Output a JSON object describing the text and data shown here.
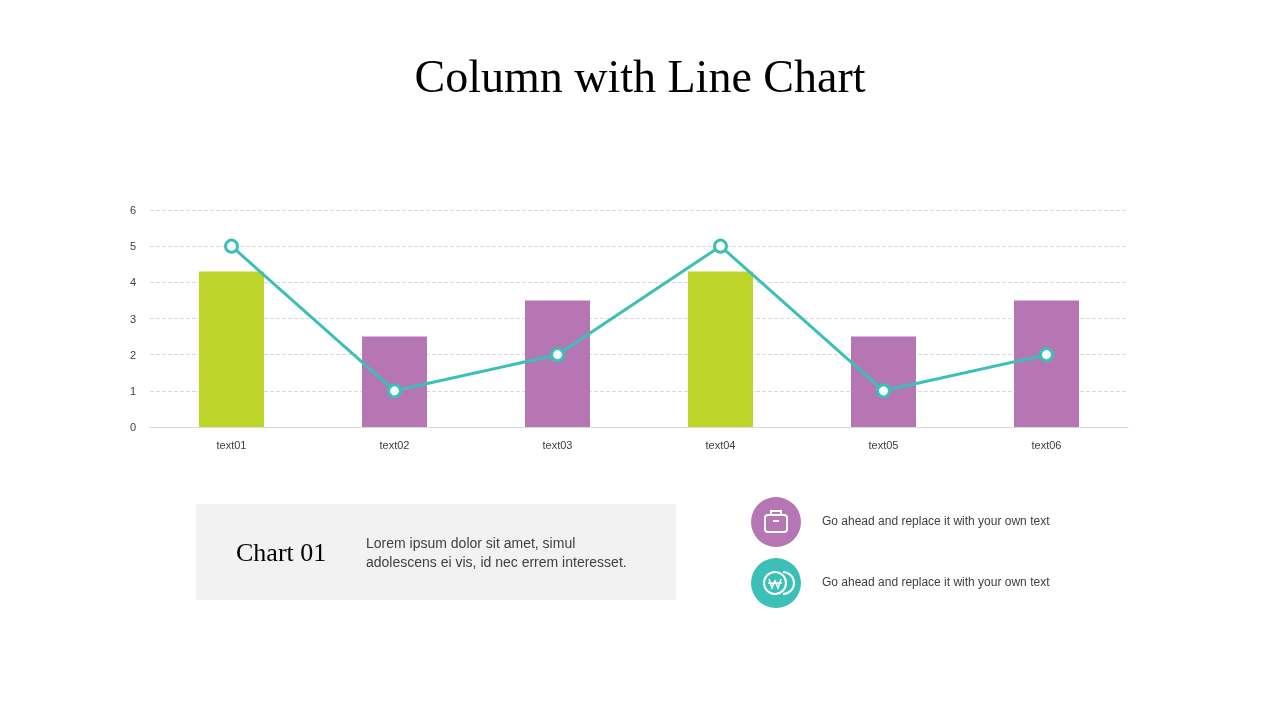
{
  "chart_data": {
    "type": "bar",
    "title": "Column with Line Chart",
    "categories": [
      "text01",
      "text02",
      "text03",
      "text04",
      "text05",
      "text06"
    ],
    "series": [
      {
        "colors": [
          "#bdd428",
          "#b576b3",
          "#b576b3",
          "#bdd428",
          "#b576b3",
          "#b576b3"
        ],
        "values": [
          4.3,
          2.5,
          3.5,
          4.3,
          2.5,
          3.5
        ]
      },
      {
        "type": "line",
        "color": "#3bbfb7",
        "marker": "circle",
        "values": [
          5,
          1,
          2,
          5,
          1,
          2
        ]
      }
    ],
    "ylim": [
      0,
      6
    ],
    "yticks": [
      0,
      1,
      2,
      3,
      4,
      5,
      6
    ],
    "grid": "y",
    "annotations": [
      "Chart 01",
      "Lorem ipsum dolor sit amet, simul adolescens ei vis, id nec errem  interesset.",
      "Go ahead and replace it with your own text",
      "Go ahead and replace it with your own text"
    ]
  }
}
